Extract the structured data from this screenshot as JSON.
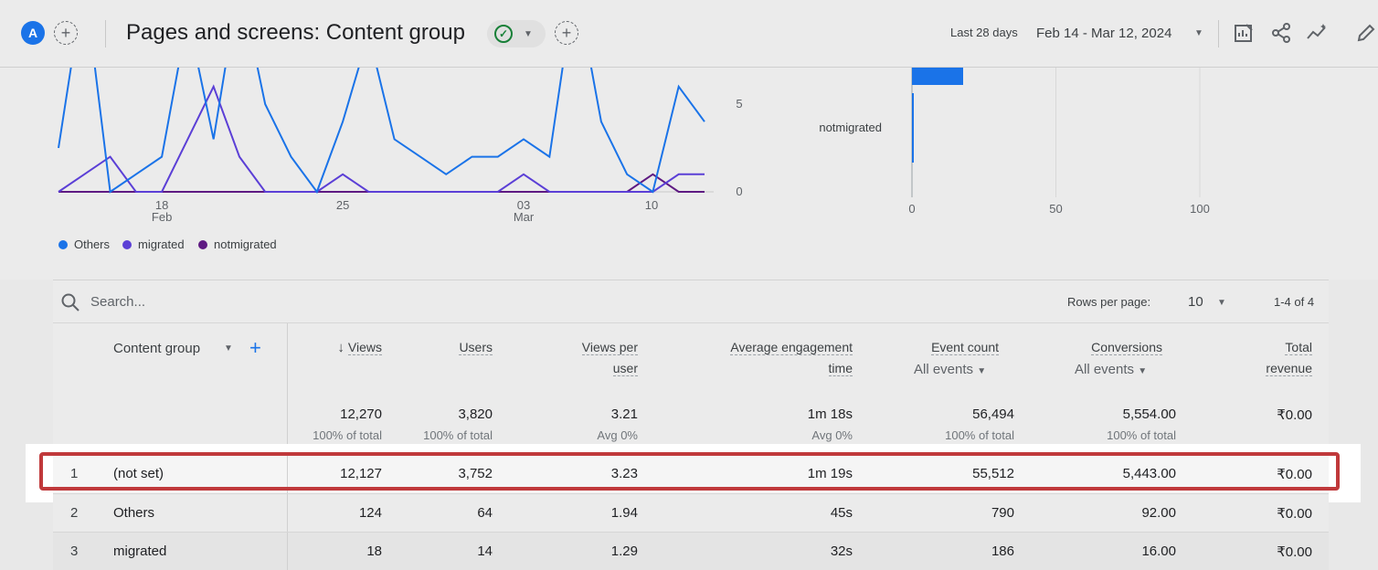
{
  "header": {
    "avatar_letter": "A",
    "title": "Pages and screens: Content group",
    "date_label": "Last 28 days",
    "date_range": "Feb 14 - Mar 12, 2024"
  },
  "chart_data": [
    {
      "type": "line",
      "y_ticks": [
        "5",
        "0"
      ],
      "x_ticks": [
        {
          "label": "18",
          "sub": "Feb"
        },
        {
          "label": "25",
          "sub": ""
        },
        {
          "label": "03",
          "sub": "Mar"
        },
        {
          "label": "10",
          "sub": ""
        }
      ],
      "legend": [
        "Others",
        "migrated",
        "notmigrated"
      ],
      "series": [
        {
          "name": "Others",
          "color": "#1a73e8",
          "values": [
            2.5,
            12,
            0,
            1,
            2,
            10,
            3,
            12,
            5,
            2,
            0,
            4,
            9,
            3,
            2,
            1,
            2,
            2,
            3,
            2,
            12,
            4,
            1,
            0,
            6,
            4
          ]
        },
        {
          "name": "migrated",
          "color": "#5b3fd6",
          "values": [
            0,
            1,
            2,
            0,
            0,
            3,
            6,
            2,
            0,
            0,
            0,
            1,
            0,
            0,
            0,
            0,
            0,
            0,
            1,
            0,
            0,
            0,
            0,
            0,
            1,
            1
          ]
        },
        {
          "name": "notmigrated",
          "color": "#5e1a82",
          "values": [
            0,
            0,
            0,
            0,
            0,
            0,
            0,
            0,
            0,
            0,
            0,
            0,
            0,
            0,
            0,
            0,
            0,
            0,
            0,
            0,
            0,
            0,
            0,
            1,
            0,
            0
          ]
        }
      ]
    },
    {
      "type": "bar",
      "categories": [
        "notmigrated"
      ],
      "x_ticks": [
        "0",
        "50",
        "100"
      ],
      "xlim": [
        0,
        100
      ]
    }
  ],
  "table": {
    "search_placeholder": "Search...",
    "rows_per_page_label": "Rows per page:",
    "rows_per_page_value": "10",
    "range_text": "1-4 of 4",
    "dimension_header": "Content group",
    "columns": [
      {
        "line1": "Views",
        "line2": "",
        "sub": ""
      },
      {
        "line1": "Users",
        "line2": "",
        "sub": ""
      },
      {
        "line1": "Views per",
        "line2": "user",
        "sub": ""
      },
      {
        "line1": "Average engagement",
        "line2": "time",
        "sub": ""
      },
      {
        "line1": "Event count",
        "line2": "",
        "sub": "All events"
      },
      {
        "line1": "Conversions",
        "line2": "",
        "sub": "All events"
      },
      {
        "line1": "Total",
        "line2": "revenue",
        "sub": ""
      }
    ],
    "totals": [
      {
        "value": "12,270",
        "sub": "100% of total"
      },
      {
        "value": "3,820",
        "sub": "100% of total"
      },
      {
        "value": "3.21",
        "sub": "Avg 0%"
      },
      {
        "value": "1m 18s",
        "sub": "Avg 0%"
      },
      {
        "value": "56,494",
        "sub": "100% of total"
      },
      {
        "value": "5,554.00",
        "sub": "100% of total"
      },
      {
        "value": "₹0.00",
        "sub": ""
      }
    ],
    "rows": [
      {
        "index": "1",
        "name": "(not set)",
        "cells": [
          "12,127",
          "3,752",
          "3.23",
          "1m 19s",
          "55,512",
          "5,443.00",
          "₹0.00"
        ]
      },
      {
        "index": "2",
        "name": "Others",
        "cells": [
          "124",
          "64",
          "1.94",
          "45s",
          "790",
          "92.00",
          "₹0.00"
        ]
      },
      {
        "index": "3",
        "name": "migrated",
        "cells": [
          "18",
          "14",
          "1.29",
          "32s",
          "186",
          "16.00",
          "₹0.00"
        ]
      }
    ]
  }
}
